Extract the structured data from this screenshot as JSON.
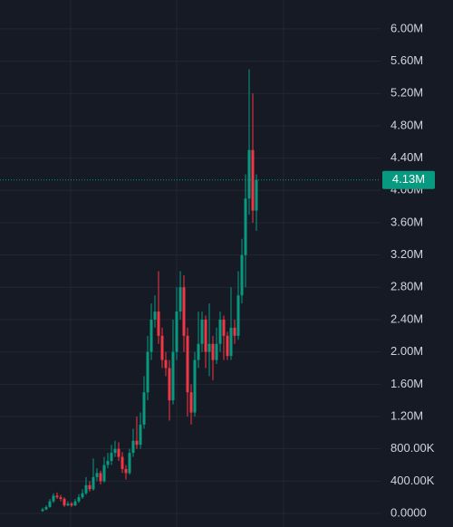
{
  "chart_data": {
    "type": "candlestick",
    "open": [
      30000,
      50000,
      80000,
      150000,
      220000,
      200000,
      180000,
      100000,
      120000,
      100000,
      150000,
      200000,
      250000,
      350000,
      300000,
      450000,
      500000,
      400000,
      600000,
      650000,
      750000,
      800000,
      700000,
      550000,
      500000,
      750000,
      900000,
      850000,
      1100000,
      1500000,
      2000000,
      2400000,
      2500000,
      2200000,
      1900000,
      1800000,
      1400000,
      2000000,
      2500000,
      2800000,
      2200000,
      1500000,
      1250000,
      1900000,
      2100000,
      2400000,
      2000000,
      2100000,
      1900000,
      2100000,
      2400000,
      2200000,
      1950000,
      2300000,
      2200000,
      2700000,
      3200000,
      3900000,
      4500000,
      3750000
    ],
    "high": [
      70000,
      100000,
      180000,
      250000,
      260000,
      230000,
      200000,
      150000,
      140000,
      180000,
      240000,
      300000,
      450000,
      400000,
      680000,
      560000,
      530000,
      700000,
      750000,
      850000,
      900000,
      880000,
      760000,
      600000,
      800000,
      1050000,
      1200000,
      1250000,
      1700000,
      2200000,
      2600000,
      2700000,
      3000000,
      2300000,
      2000000,
      1900000,
      2400000,
      2800000,
      3000000,
      2950000,
      2300000,
      1600000,
      2000000,
      2500000,
      2500000,
      2450000,
      2600000,
      2200000,
      2300000,
      2500000,
      2450000,
      2250000,
      2800000,
      2400000,
      3000000,
      3400000,
      4200000,
      5500000,
      5200000,
      4200000
    ],
    "low": [
      20000,
      40000,
      70000,
      130000,
      180000,
      150000,
      80000,
      90000,
      80000,
      90000,
      130000,
      180000,
      230000,
      270000,
      280000,
      400000,
      360000,
      380000,
      560000,
      600000,
      700000,
      650000,
      500000,
      420000,
      480000,
      700000,
      800000,
      800000,
      1050000,
      1400000,
      1900000,
      2300000,
      2100000,
      1800000,
      1700000,
      1150000,
      1350000,
      1900000,
      2400000,
      2000000,
      1200000,
      1100000,
      1200000,
      1800000,
      2000000,
      1800000,
      1700000,
      1650000,
      1850000,
      2000000,
      1900000,
      1900000,
      1900000,
      2100000,
      2150000,
      2600000,
      2800000,
      3700000,
      3600000,
      3500000
    ],
    "close": [
      50000,
      80000,
      150000,
      220000,
      200000,
      180000,
      100000,
      120000,
      100000,
      150000,
      200000,
      250000,
      350000,
      300000,
      450000,
      500000,
      400000,
      600000,
      650000,
      750000,
      800000,
      700000,
      550000,
      500000,
      750000,
      900000,
      850000,
      1100000,
      1500000,
      2000000,
      2400000,
      2500000,
      2200000,
      1900000,
      1800000,
      1400000,
      2000000,
      2500000,
      2800000,
      2200000,
      1500000,
      1250000,
      1900000,
      2100000,
      2400000,
      2000000,
      2100000,
      1900000,
      2100000,
      2400000,
      2200000,
      1950000,
      2300000,
      2200000,
      2700000,
      3200000,
      3900000,
      4500000,
      3750000,
      4130000
    ],
    "up_color": "#089981",
    "down_color": "#f23645",
    "ylim": [
      -168000,
      6358000
    ],
    "yticks": [
      {
        "value": 0,
        "label": "0.0000"
      },
      {
        "value": 400000,
        "label": "400.00K"
      },
      {
        "value": 800000,
        "label": "800.00K"
      },
      {
        "value": 1200000,
        "label": "1.20M"
      },
      {
        "value": 1600000,
        "label": "1.60M"
      },
      {
        "value": 2000000,
        "label": "2.00M"
      },
      {
        "value": 2400000,
        "label": "2.40M"
      },
      {
        "value": 2800000,
        "label": "2.80M"
      },
      {
        "value": 3200000,
        "label": "3.20M"
      },
      {
        "value": 3600000,
        "label": "3.60M"
      },
      {
        "value": 4000000,
        "label": "4.00M"
      },
      {
        "value": 4400000,
        "label": "4.40M"
      },
      {
        "value": 4800000,
        "label": "4.80M"
      },
      {
        "value": 5200000,
        "label": "5.20M"
      },
      {
        "value": 5600000,
        "label": "5.60M"
      },
      {
        "value": 6000000,
        "label": "6.00M"
      }
    ],
    "last_price": {
      "value": 4130000,
      "label": "4.13M"
    },
    "grid": true
  }
}
